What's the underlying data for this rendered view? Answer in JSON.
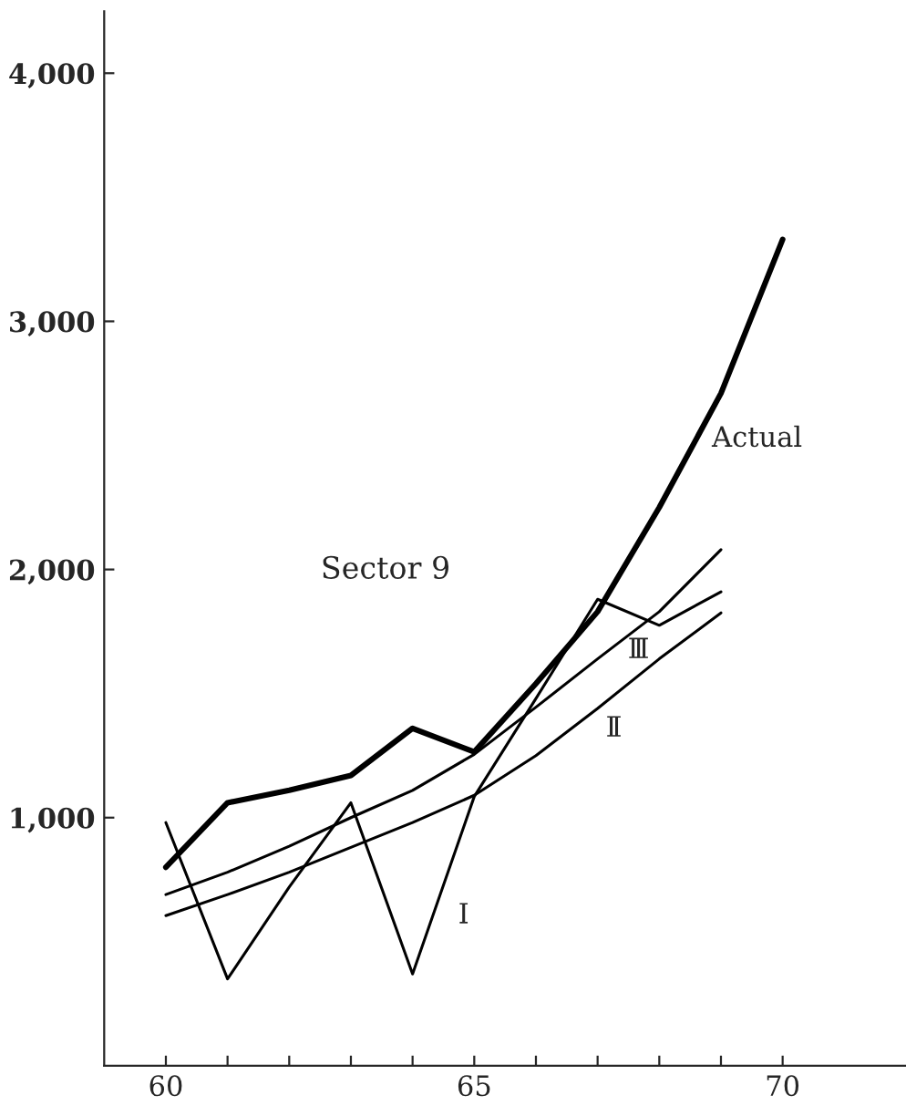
{
  "chart_data": {
    "type": "line",
    "x": [
      60,
      61,
      62,
      63,
      64,
      65,
      66,
      67,
      68,
      69,
      70
    ],
    "series": [
      {
        "name": "Actual",
        "color": "#000000",
        "values": [
          800,
          1060,
          1110,
          1170,
          1360,
          1265,
          1540,
          1830,
          2250,
          2710,
          3330
        ]
      },
      {
        "name": "Ⅰ",
        "color": "#000000",
        "x": [
          60,
          61,
          62,
          63,
          64,
          65,
          66,
          67,
          68,
          69
        ],
        "values": [
          980,
          350,
          720,
          1060,
          370,
          1085,
          1480,
          1880,
          1775,
          1910
        ]
      },
      {
        "name": "Ⅱ",
        "color": "#000000",
        "x": [
          60,
          61,
          62,
          63,
          64,
          65,
          66,
          67,
          68,
          69
        ],
        "values": [
          605,
          690,
          780,
          880,
          980,
          1090,
          1250,
          1440,
          1640,
          1825
        ]
      },
      {
        "name": "Ⅲ",
        "color": "#000000",
        "x": [
          60,
          61,
          62,
          63,
          64,
          65,
          66,
          67,
          68,
          69
        ],
        "values": [
          690,
          780,
          885,
          1000,
          1110,
          1255,
          1445,
          1640,
          1830,
          2080
        ]
      }
    ],
    "annotations": [
      "Sector 9"
    ],
    "xlim": [
      59,
      72
    ],
    "xticks": [
      60,
      {
        "value": 61,
        "label": null
      },
      {
        "value": 62,
        "label": null
      },
      {
        "value": 63,
        "label": null
      },
      {
        "value": 64,
        "label": null
      },
      65,
      {
        "value": 66,
        "label": null
      },
      {
        "value": 67,
        "label": null
      },
      {
        "value": 68,
        "label": null
      },
      {
        "value": 69,
        "label": null
      },
      70
    ],
    "ylim": [
      0,
      4250
    ],
    "yticks": [
      {
        "value": 1000,
        "label": "1,000"
      },
      {
        "value": 2000,
        "label": "2,000"
      },
      {
        "value": 3000,
        "label": "3,000"
      },
      {
        "value": 4000,
        "label": "4,000"
      }
    ],
    "grid": false,
    "legend": false,
    "marker": "none",
    "line_style": "solid"
  }
}
